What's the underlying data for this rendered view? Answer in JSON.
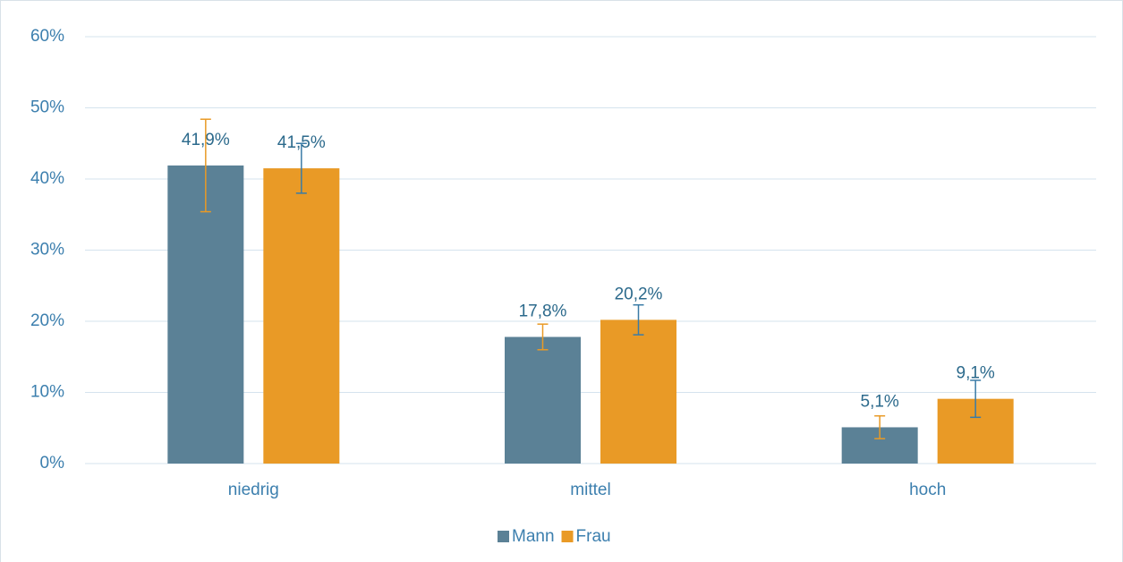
{
  "chart_data": {
    "type": "bar",
    "categories": [
      "niedrig",
      "mittel",
      "hoch"
    ],
    "series": [
      {
        "name": "Mann",
        "color": "#5b8196",
        "error_color": "#e99a26",
        "values": [
          41.9,
          17.8,
          5.1
        ],
        "value_labels": [
          "41,9%",
          "17,8%",
          "5,1%"
        ],
        "errors": [
          6.5,
          1.8,
          1.6
        ]
      },
      {
        "name": "Frau",
        "color": "#e99a26",
        "error_color": "#3a7ba6",
        "values": [
          41.5,
          20.2,
          9.1
        ],
        "value_labels": [
          "41,5%",
          "20,2%",
          "9,1%"
        ],
        "errors": [
          3.5,
          2.1,
          2.6
        ]
      }
    ],
    "ylim": [
      0,
      60
    ],
    "yticks": [
      {
        "value": 0,
        "label": "0%"
      },
      {
        "value": 10,
        "label": "10%"
      },
      {
        "value": 20,
        "label": "20%"
      },
      {
        "value": 30,
        "label": "30%"
      },
      {
        "value": 40,
        "label": "40%"
      },
      {
        "value": 50,
        "label": "50%"
      },
      {
        "value": 60,
        "label": "60%"
      }
    ],
    "grid": true,
    "legend": "bottom"
  }
}
